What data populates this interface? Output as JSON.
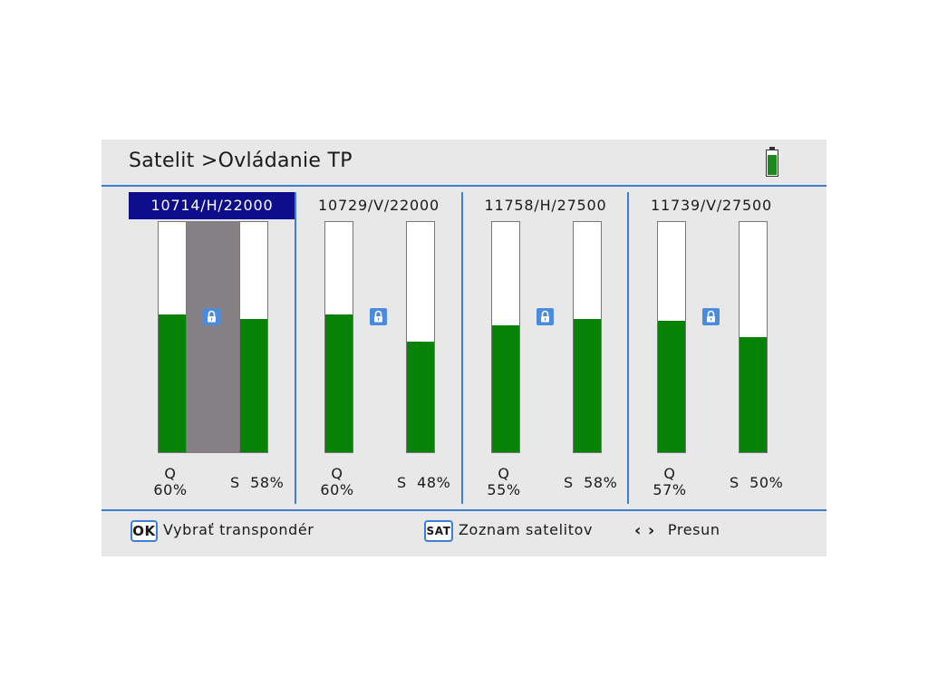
{
  "header": {
    "title": "Satelit >Ovládanie TP",
    "battery_level": 0.85,
    "battery_icon": "battery-icon"
  },
  "transponders": [
    {
      "label": "10714/H/22000",
      "selected": true,
      "q_label": "Q",
      "q_value": "60%",
      "s_label": "S  58%",
      "q_percent": 60,
      "s_percent": 58,
      "locked": true
    },
    {
      "label": "10729/V/22000",
      "selected": false,
      "q_label": "Q",
      "q_value": "60%",
      "s_label": "S  48%",
      "q_percent": 60,
      "s_percent": 48,
      "locked": true
    },
    {
      "label": "11758/H/27500",
      "selected": false,
      "q_label": "Q",
      "q_value": "55%",
      "s_label": "S  58%",
      "q_percent": 55,
      "s_percent": 58,
      "locked": true
    },
    {
      "label": "11739/V/27500",
      "selected": false,
      "q_label": "Q",
      "q_value": "57%",
      "s_label": "S  50%",
      "q_percent": 57,
      "s_percent": 50,
      "locked": true
    }
  ],
  "footer": {
    "ok_key": "OK",
    "ok_text": "Vybrať transpondér",
    "sat_key": "SAT",
    "sat_text": "Zoznam satelitov",
    "arrows_glyph": "‹ ›",
    "arrows_text": "Presun"
  },
  "colors": {
    "accent": "#3d7fd6",
    "selected_label_bg": "#0d0d8c",
    "bar_fill": "#068206",
    "selected_strip": "#848084",
    "lock_bg": "#4a8be0"
  }
}
